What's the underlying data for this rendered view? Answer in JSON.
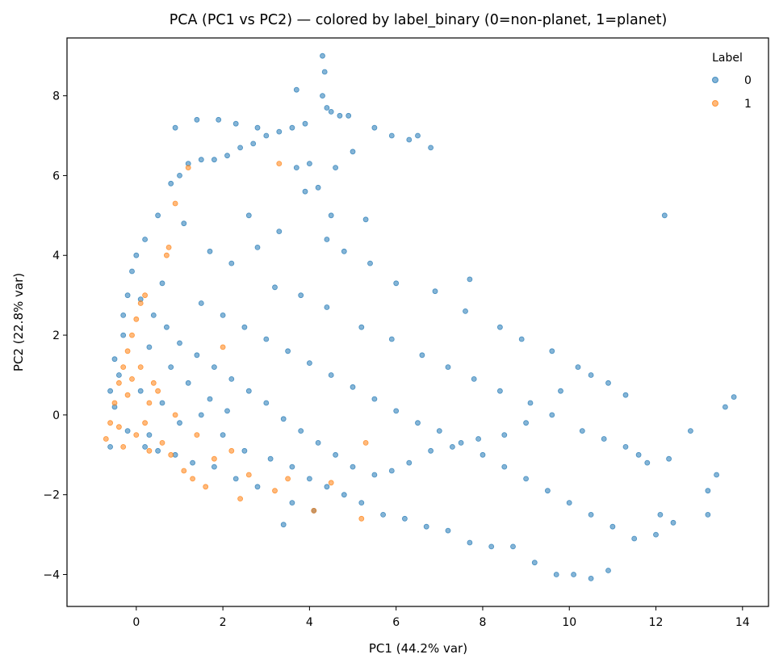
{
  "chart_data": {
    "type": "scatter",
    "title": "PCA (PC1 vs PC2) — colored by label_binary (0=non-planet, 1=planet)",
    "xlabel": "PC1 (44.2% var)",
    "ylabel": "PC2 (22.8% var)",
    "xlim": [
      -1.6,
      14.6
    ],
    "ylim": [
      -4.8,
      9.45
    ],
    "xticks": [
      0,
      2,
      4,
      6,
      8,
      10,
      12,
      14
    ],
    "xtick_labels": [
      "0",
      "2",
      "4",
      "6",
      "8",
      "10",
      "12",
      "14"
    ],
    "yticks": [
      -4,
      -2,
      0,
      2,
      4,
      6,
      8
    ],
    "ytick_labels": [
      "−4",
      "−2",
      "0",
      "2",
      "4",
      "6",
      "8"
    ],
    "grid": false,
    "legend": {
      "title": "Label",
      "placement": "top-right",
      "entries": [
        "0",
        "1"
      ]
    },
    "series": [
      {
        "name": "0",
        "color": "#1f77b4",
        "points": [
          [
            -0.6,
            -0.8
          ],
          [
            -0.5,
            0.2
          ],
          [
            -0.4,
            1.0
          ],
          [
            -0.3,
            2.0
          ],
          [
            -0.2,
            3.0
          ],
          [
            -0.1,
            3.6
          ],
          [
            0.0,
            4.0
          ],
          [
            0.2,
            4.4
          ],
          [
            0.5,
            5.0
          ],
          [
            0.8,
            5.8
          ],
          [
            1.0,
            6.0
          ],
          [
            1.2,
            6.3
          ],
          [
            1.5,
            6.4
          ],
          [
            1.8,
            6.4
          ],
          [
            2.1,
            6.5
          ],
          [
            2.4,
            6.7
          ],
          [
            2.7,
            6.8
          ],
          [
            3.0,
            7.0
          ],
          [
            3.3,
            7.1
          ],
          [
            3.6,
            7.2
          ],
          [
            3.9,
            7.3
          ],
          [
            4.3,
            9.0
          ],
          [
            4.35,
            8.6
          ],
          [
            4.3,
            8.0
          ],
          [
            4.4,
            7.7
          ],
          [
            4.5,
            7.6
          ],
          [
            4.7,
            7.5
          ],
          [
            4.9,
            7.5
          ],
          [
            3.7,
            8.15
          ],
          [
            0.9,
            7.2
          ],
          [
            1.4,
            7.4
          ],
          [
            1.9,
            7.4
          ],
          [
            2.3,
            7.3
          ],
          [
            2.8,
            7.2
          ],
          [
            5.5,
            7.2
          ],
          [
            5.9,
            7.0
          ],
          [
            6.3,
            6.9
          ],
          [
            6.5,
            7.0
          ],
          [
            6.8,
            6.7
          ],
          [
            5.0,
            6.6
          ],
          [
            4.6,
            6.2
          ],
          [
            4.0,
            6.3
          ],
          [
            3.7,
            6.2
          ],
          [
            3.9,
            5.6
          ],
          [
            4.2,
            5.7
          ],
          [
            4.5,
            5.0
          ],
          [
            5.3,
            4.9
          ],
          [
            4.4,
            4.4
          ],
          [
            4.8,
            4.1
          ],
          [
            5.4,
            3.8
          ],
          [
            6.0,
            3.3
          ],
          [
            6.9,
            3.1
          ],
          [
            7.7,
            3.4
          ],
          [
            7.6,
            2.6
          ],
          [
            8.4,
            2.2
          ],
          [
            8.9,
            1.9
          ],
          [
            9.6,
            1.6
          ],
          [
            10.2,
            1.2
          ],
          [
            10.5,
            1.0
          ],
          [
            9.8,
            0.6
          ],
          [
            10.9,
            0.8
          ],
          [
            11.3,
            0.5
          ],
          [
            12.2,
            5.0
          ],
          [
            13.8,
            0.45
          ],
          [
            13.6,
            0.2
          ],
          [
            12.8,
            -0.4
          ],
          [
            13.4,
            -1.5
          ],
          [
            13.2,
            -1.9
          ],
          [
            13.2,
            -2.5
          ],
          [
            12.4,
            -2.7
          ],
          [
            12.1,
            -2.5
          ],
          [
            11.8,
            -1.2
          ],
          [
            11.3,
            -0.8
          ],
          [
            10.9,
            -3.9
          ],
          [
            10.5,
            -4.1
          ],
          [
            10.1,
            -4.0
          ],
          [
            9.7,
            -4.0
          ],
          [
            9.2,
            -3.7
          ],
          [
            8.7,
            -3.3
          ],
          [
            8.2,
            -3.3
          ],
          [
            7.7,
            -3.2
          ],
          [
            7.2,
            -2.9
          ],
          [
            6.7,
            -2.8
          ],
          [
            6.2,
            -2.6
          ],
          [
            5.7,
            -2.5
          ],
          [
            5.2,
            -2.2
          ],
          [
            4.8,
            -2.0
          ],
          [
            4.1,
            -2.4
          ],
          [
            3.6,
            -2.2
          ],
          [
            3.4,
            -2.75
          ],
          [
            2.8,
            -1.8
          ],
          [
            2.3,
            -1.6
          ],
          [
            1.8,
            -1.3
          ],
          [
            1.3,
            -1.2
          ],
          [
            0.9,
            -1.0
          ],
          [
            0.5,
            -0.9
          ],
          [
            0.2,
            -0.8
          ],
          [
            9.0,
            -0.2
          ],
          [
            8.5,
            -0.5
          ],
          [
            7.9,
            -0.6
          ],
          [
            7.3,
            -0.8
          ],
          [
            6.8,
            -0.9
          ],
          [
            6.3,
            -1.2
          ],
          [
            5.9,
            -1.4
          ],
          [
            5.5,
            -1.5
          ],
          [
            5.0,
            -1.3
          ],
          [
            4.6,
            -1.0
          ],
          [
            4.2,
            -0.7
          ],
          [
            3.8,
            -0.4
          ],
          [
            3.4,
            -0.1
          ],
          [
            3.0,
            0.3
          ],
          [
            2.6,
            0.6
          ],
          [
            2.2,
            0.9
          ],
          [
            1.8,
            1.2
          ],
          [
            1.4,
            1.5
          ],
          [
            1.0,
            1.8
          ],
          [
            0.7,
            2.2
          ],
          [
            0.4,
            2.5
          ],
          [
            1.5,
            2.8
          ],
          [
            2.0,
            2.5
          ],
          [
            2.5,
            2.2
          ],
          [
            3.0,
            1.9
          ],
          [
            3.5,
            1.6
          ],
          [
            4.0,
            1.3
          ],
          [
            4.5,
            1.0
          ],
          [
            5.0,
            0.7
          ],
          [
            5.5,
            0.4
          ],
          [
            6.0,
            0.1
          ],
          [
            6.5,
            -0.2
          ],
          [
            7.0,
            -0.4
          ],
          [
            7.5,
            -0.7
          ],
          [
            8.0,
            -1.0
          ],
          [
            8.5,
            -1.3
          ],
          [
            9.0,
            -1.6
          ],
          [
            9.5,
            -1.9
          ],
          [
            10.0,
            -2.2
          ],
          [
            10.5,
            -2.5
          ],
          [
            11.0,
            -2.8
          ],
          [
            11.5,
            -3.1
          ],
          [
            12.0,
            -3.0
          ],
          [
            2.2,
            3.8
          ],
          [
            2.8,
            4.2
          ],
          [
            3.3,
            4.6
          ],
          [
            2.6,
            5.0
          ],
          [
            1.7,
            4.1
          ],
          [
            1.1,
            4.8
          ],
          [
            0.6,
            3.3
          ],
          [
            3.2,
            3.2
          ],
          [
            3.8,
            3.0
          ],
          [
            4.4,
            2.7
          ],
          [
            5.2,
            2.2
          ],
          [
            5.9,
            1.9
          ],
          [
            6.6,
            1.5
          ],
          [
            7.2,
            1.2
          ],
          [
            7.8,
            0.9
          ],
          [
            8.4,
            0.6
          ],
          [
            9.1,
            0.3
          ],
          [
            9.6,
            0.0
          ],
          [
            10.3,
            -0.4
          ],
          [
            10.8,
            -0.6
          ],
          [
            11.6,
            -1.0
          ],
          [
            12.3,
            -1.1
          ],
          [
            0.3,
            -0.5
          ],
          [
            -0.2,
            -0.4
          ],
          [
            0.1,
            0.6
          ],
          [
            0.6,
            0.3
          ],
          [
            1.0,
            -0.2
          ],
          [
            1.5,
            0.0
          ],
          [
            2.0,
            -0.5
          ],
          [
            2.5,
            -0.9
          ],
          [
            3.1,
            -1.1
          ],
          [
            3.6,
            -1.3
          ],
          [
            4.0,
            -1.6
          ],
          [
            4.4,
            -1.8
          ],
          [
            -0.6,
            0.6
          ],
          [
            -0.5,
            1.4
          ],
          [
            -0.3,
            2.5
          ],
          [
            0.1,
            2.9
          ],
          [
            0.3,
            1.7
          ],
          [
            0.8,
            1.2
          ],
          [
            1.2,
            0.8
          ],
          [
            1.7,
            0.4
          ],
          [
            2.1,
            0.1
          ]
        ]
      },
      {
        "name": "1",
        "color": "#ff7f0e",
        "points": [
          [
            -0.7,
            -0.6
          ],
          [
            -0.6,
            -0.2
          ],
          [
            -0.5,
            0.3
          ],
          [
            -0.4,
            0.8
          ],
          [
            -0.3,
            1.2
          ],
          [
            -0.2,
            1.6
          ],
          [
            -0.1,
            2.0
          ],
          [
            0.0,
            2.4
          ],
          [
            0.1,
            2.8
          ],
          [
            0.2,
            3.0
          ],
          [
            -0.3,
            -0.8
          ],
          [
            0.0,
            -0.5
          ],
          [
            0.2,
            -0.2
          ],
          [
            0.3,
            0.3
          ],
          [
            0.4,
            0.8
          ],
          [
            0.1,
            1.2
          ],
          [
            -0.2,
            0.5
          ],
          [
            -0.4,
            -0.3
          ],
          [
            0.6,
            -0.7
          ],
          [
            0.8,
            -1.0
          ],
          [
            1.1,
            -1.4
          ],
          [
            1.3,
            -1.6
          ],
          [
            1.6,
            -1.8
          ],
          [
            2.4,
            -2.1
          ],
          [
            0.7,
            4.0
          ],
          [
            0.75,
            4.2
          ],
          [
            3.3,
            6.3
          ],
          [
            0.9,
            5.3
          ],
          [
            1.2,
            6.2
          ],
          [
            2.0,
            1.7
          ],
          [
            2.6,
            -1.5
          ],
          [
            3.5,
            -1.6
          ],
          [
            4.5,
            -1.7
          ],
          [
            5.3,
            -0.7
          ],
          [
            5.2,
            -2.6
          ],
          [
            3.2,
            -1.9
          ],
          [
            4.1,
            -2.4
          ],
          [
            0.5,
            0.6
          ],
          [
            0.9,
            0.0
          ],
          [
            1.4,
            -0.5
          ],
          [
            1.8,
            -1.1
          ],
          [
            2.2,
            -0.9
          ],
          [
            0.3,
            -0.9
          ],
          [
            -0.1,
            0.9
          ]
        ]
      }
    ]
  }
}
